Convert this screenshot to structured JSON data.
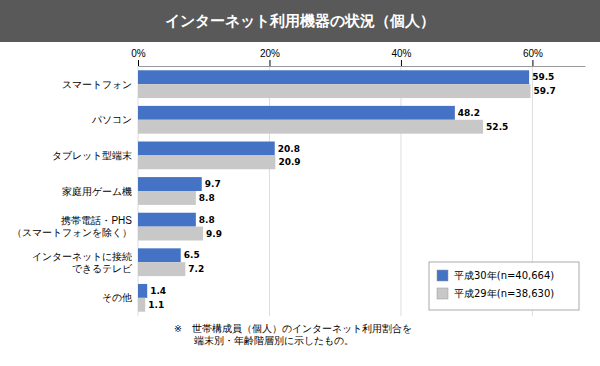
{
  "chart_data": {
    "type": "bar",
    "orientation": "horizontal",
    "title": "インターネット利用機器の状況（個人）",
    "categories": [
      "スマートフォン",
      "パソコン",
      "タブレット型端末",
      "家庭用ゲーム機",
      "携帯電話・PHS\n（スマートフォンを除く）",
      "インターネットに接続\nできるテレビ",
      "その他"
    ],
    "series": [
      {
        "name": "平成30年(n=40,664)",
        "color": "#4472C4",
        "values": [
          59.5,
          48.2,
          20.8,
          9.7,
          8.8,
          6.5,
          1.4
        ]
      },
      {
        "name": "平成29年(n=38,630)",
        "color": "#C8C8C8",
        "values": [
          59.7,
          52.5,
          20.9,
          8.8,
          9.9,
          7.2,
          1.1
        ]
      }
    ],
    "xlim": [
      0,
      68
    ],
    "xticks": [
      {
        "value": 0,
        "label": "0%"
      },
      {
        "value": 20,
        "label": "20%"
      },
      {
        "value": 40,
        "label": "40%"
      },
      {
        "value": 60,
        "label": "60%"
      }
    ],
    "grid": true,
    "legend": "lower right",
    "data_labels": true,
    "annotations": [
      "※　世帯構成員（個人）のインターネット利用割合を\n　　端末別・年齢階層別に示したもの。"
    ]
  }
}
